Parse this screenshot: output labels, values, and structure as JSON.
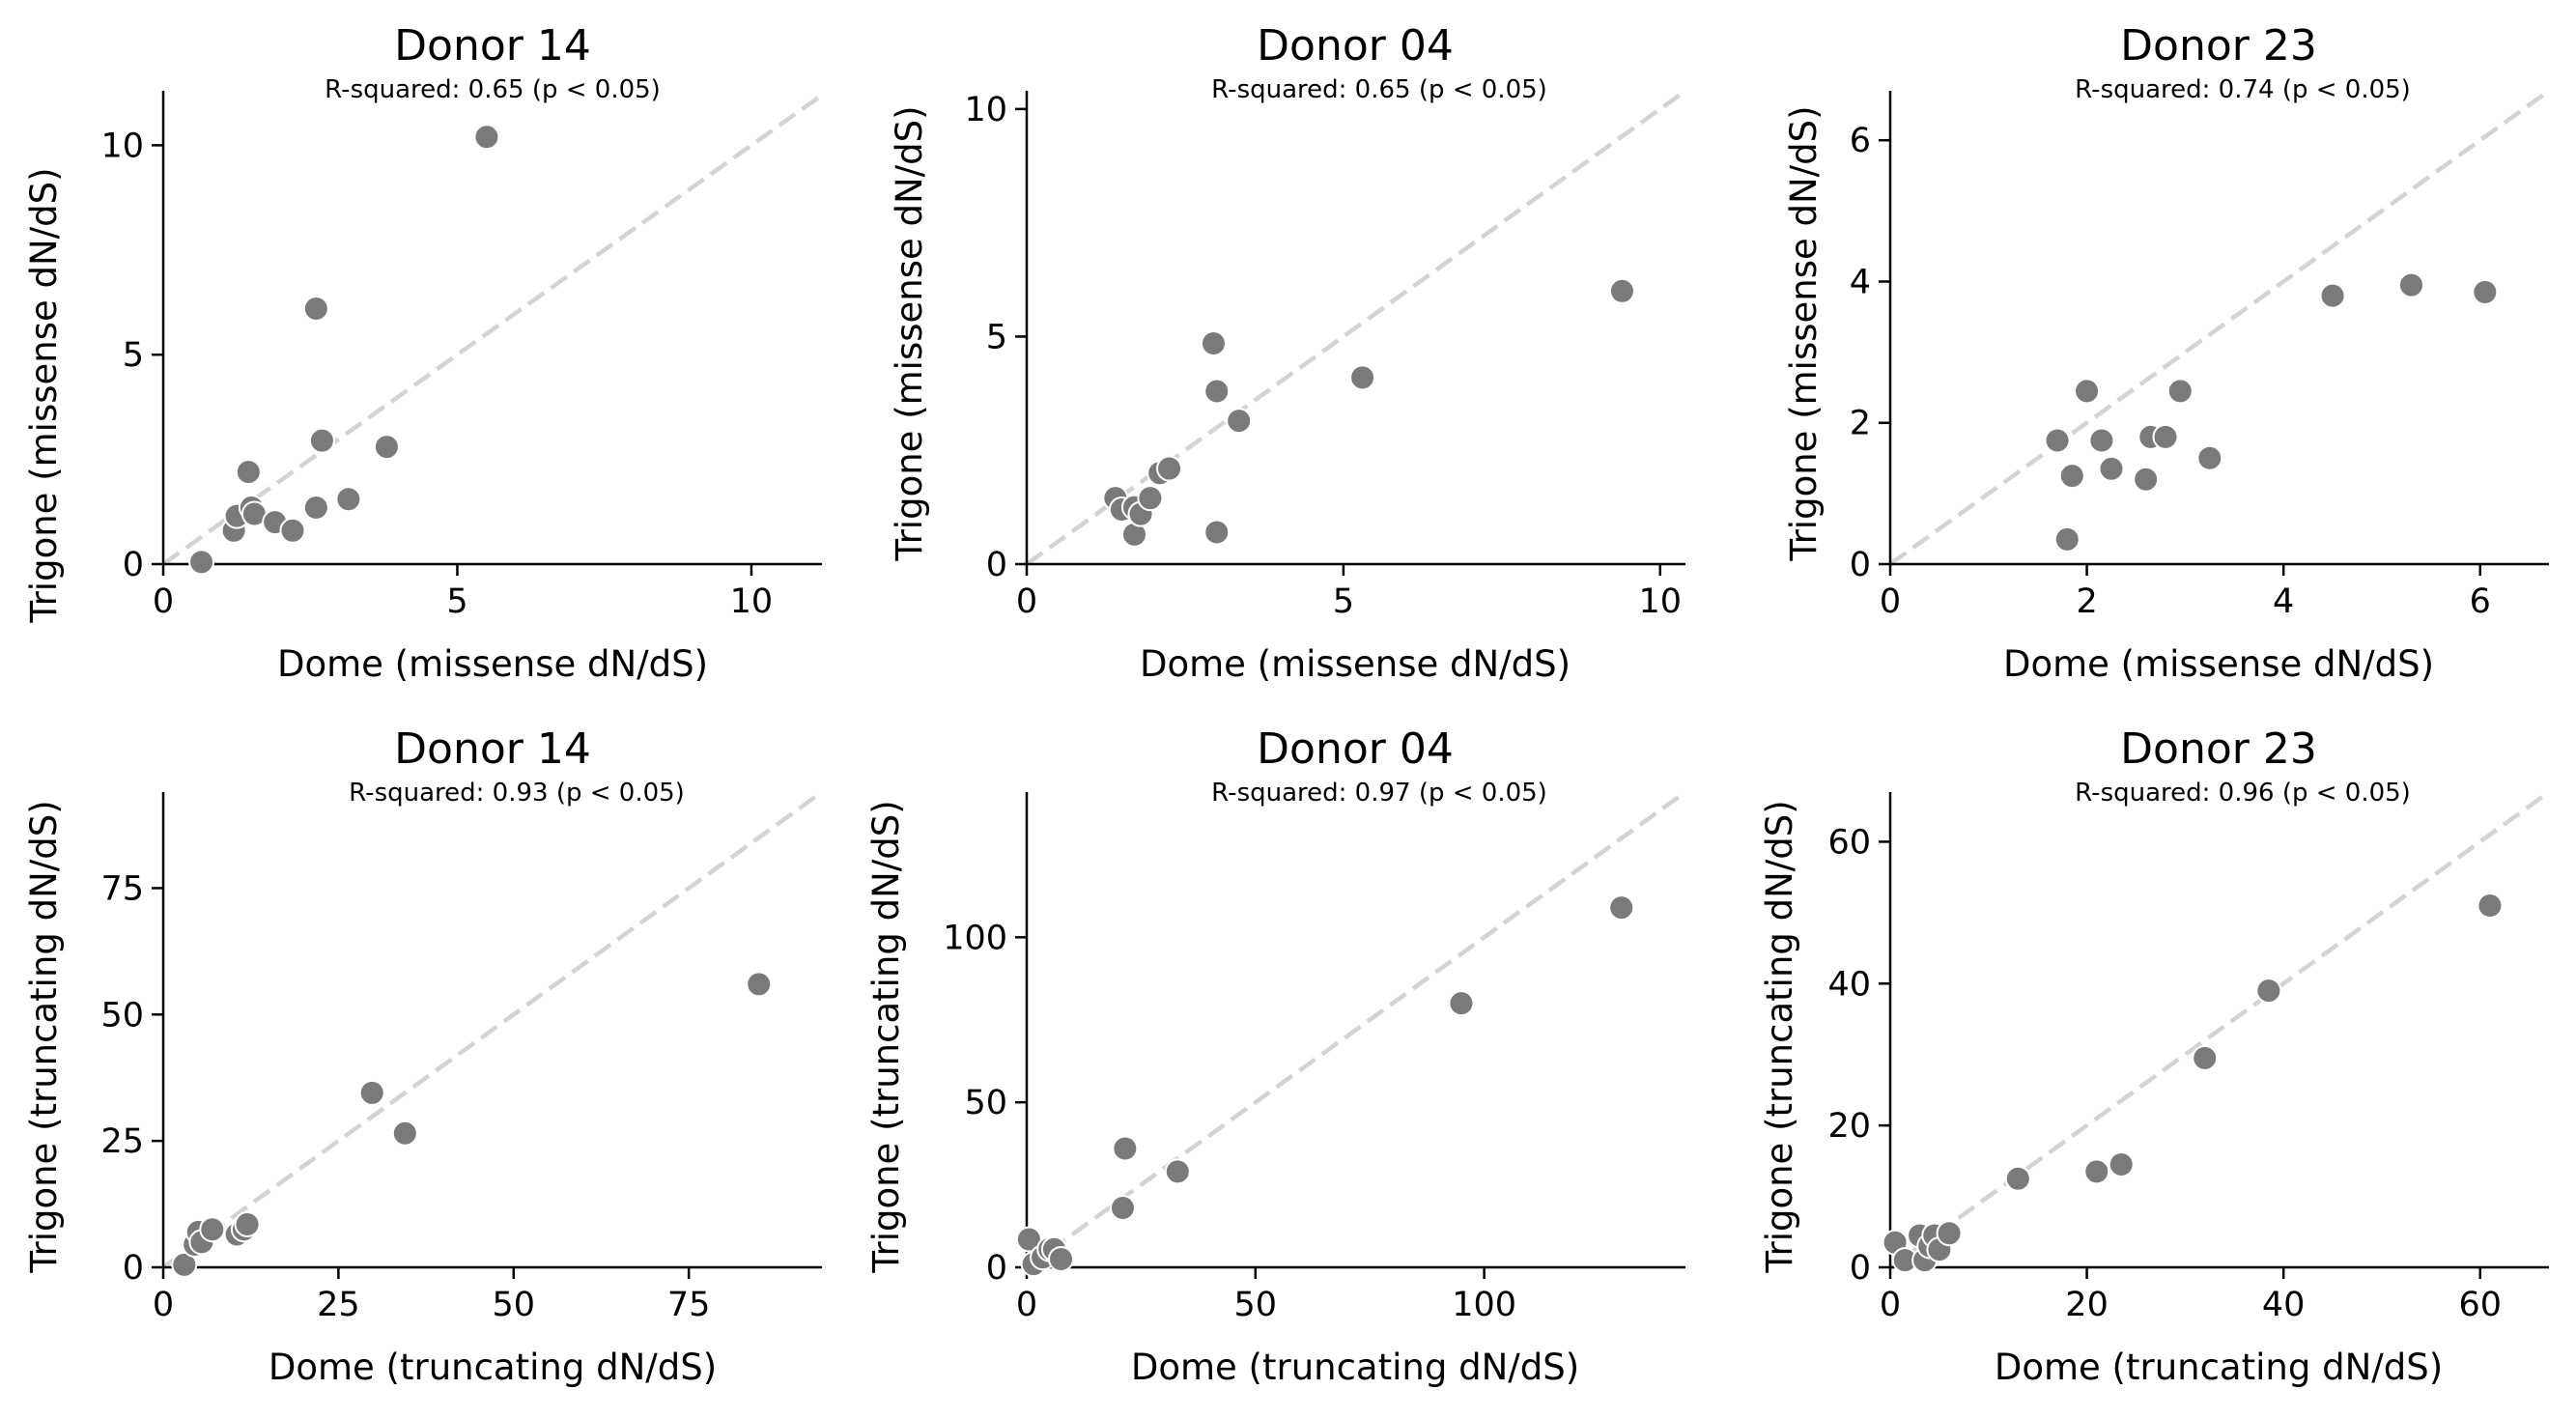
{
  "colors": {
    "point": "#7a7a7a",
    "diagonal": "#d3d3d3",
    "axis": "#000000"
  },
  "chart_data": [
    {
      "type": "scatter",
      "title": "Donor 14",
      "subtitle": "R-squared: 0.65 (p < 0.05)",
      "xlabel": "Dome (missense dN/dS)",
      "ylabel": "Trigone (missense dN/dS)",
      "xlim": [
        0,
        11.2
      ],
      "ylim": [
        0,
        11.3
      ],
      "xticks": [
        0,
        5,
        10
      ],
      "yticks": [
        0,
        5,
        10
      ],
      "diagonal": "y = x",
      "points": [
        {
          "x": 0.65,
          "y": 0.05
        },
        {
          "x": 1.2,
          "y": 0.8
        },
        {
          "x": 1.25,
          "y": 1.15
        },
        {
          "x": 1.5,
          "y": 1.35
        },
        {
          "x": 1.55,
          "y": 1.2
        },
        {
          "x": 1.45,
          "y": 2.2
        },
        {
          "x": 1.9,
          "y": 1.0
        },
        {
          "x": 2.2,
          "y": 0.8
        },
        {
          "x": 2.6,
          "y": 1.35
        },
        {
          "x": 2.6,
          "y": 6.1
        },
        {
          "x": 2.7,
          "y": 2.95
        },
        {
          "x": 3.15,
          "y": 1.55
        },
        {
          "x": 3.8,
          "y": 2.8
        },
        {
          "x": 5.5,
          "y": 10.2
        }
      ]
    },
    {
      "type": "scatter",
      "title": "Donor 04",
      "subtitle": "R-squared: 0.65 (p < 0.05)",
      "xlabel": "Dome (missense dN/dS)",
      "ylabel": "Trigone (missense dN/dS)",
      "xlim": [
        0,
        10.4
      ],
      "ylim": [
        0,
        10.4
      ],
      "xticks": [
        0,
        5,
        10
      ],
      "yticks": [
        0,
        5,
        10
      ],
      "diagonal": "y = x",
      "points": [
        {
          "x": 1.4,
          "y": 1.45
        },
        {
          "x": 1.5,
          "y": 1.2
        },
        {
          "x": 1.7,
          "y": 1.25
        },
        {
          "x": 1.7,
          "y": 0.65
        },
        {
          "x": 1.8,
          "y": 1.1
        },
        {
          "x": 1.95,
          "y": 1.45
        },
        {
          "x": 2.1,
          "y": 2.0
        },
        {
          "x": 2.25,
          "y": 2.1
        },
        {
          "x": 2.95,
          "y": 4.85
        },
        {
          "x": 3.0,
          "y": 3.8
        },
        {
          "x": 3.0,
          "y": 0.7
        },
        {
          "x": 3.35,
          "y": 3.15
        },
        {
          "x": 5.3,
          "y": 4.1
        },
        {
          "x": 9.4,
          "y": 6.0
        }
      ]
    },
    {
      "type": "scatter",
      "title": "Donor 23",
      "subtitle": "R-squared: 0.74 (p < 0.05)",
      "xlabel": "Dome (missense dN/dS)",
      "ylabel": "Trigone (missense dN/dS)",
      "xlim": [
        0,
        6.7
      ],
      "ylim": [
        0,
        6.7
      ],
      "xticks": [
        0,
        2,
        4,
        6
      ],
      "yticks": [
        0,
        2,
        4,
        6
      ],
      "diagonal": "y = x",
      "points": [
        {
          "x": 1.7,
          "y": 1.75
        },
        {
          "x": 1.8,
          "y": 0.35
        },
        {
          "x": 1.85,
          "y": 1.25
        },
        {
          "x": 2.0,
          "y": 2.45
        },
        {
          "x": 2.15,
          "y": 1.75
        },
        {
          "x": 2.25,
          "y": 1.35
        },
        {
          "x": 2.6,
          "y": 1.2
        },
        {
          "x": 2.65,
          "y": 1.8
        },
        {
          "x": 2.8,
          "y": 1.8
        },
        {
          "x": 2.95,
          "y": 2.45
        },
        {
          "x": 3.25,
          "y": 1.5
        },
        {
          "x": 4.5,
          "y": 3.8
        },
        {
          "x": 5.3,
          "y": 3.95
        },
        {
          "x": 6.05,
          "y": 3.85
        }
      ]
    },
    {
      "type": "scatter",
      "title": "Donor 14",
      "subtitle": "R-squared: 0.93 (p < 0.05)",
      "xlabel": "Dome (truncating dN/dS)",
      "ylabel": "Trigone (truncating dN/dS)",
      "xlim": [
        0,
        94
      ],
      "ylim": [
        0,
        94
      ],
      "xticks": [
        0,
        25,
        50,
        75
      ],
      "yticks": [
        0,
        25,
        50,
        75
      ],
      "diagonal": "y = x",
      "points": [
        {
          "x": 3.0,
          "y": 0.5
        },
        {
          "x": 4.5,
          "y": 4.5
        },
        {
          "x": 5.0,
          "y": 7.0
        },
        {
          "x": 5.5,
          "y": 5.0
        },
        {
          "x": 7.0,
          "y": 7.5
        },
        {
          "x": 10.5,
          "y": 6.5
        },
        {
          "x": 11.5,
          "y": 7.5
        },
        {
          "x": 12.0,
          "y": 8.5
        },
        {
          "x": 29.8,
          "y": 34.5
        },
        {
          "x": 34.5,
          "y": 26.5
        },
        {
          "x": 85.0,
          "y": 56.0
        }
      ]
    },
    {
      "type": "scatter",
      "title": "Donor 04",
      "subtitle": "R-squared: 0.97 (p < 0.05)",
      "xlabel": "Dome (truncating dN/dS)",
      "ylabel": "Trigone (truncating dN/dS)",
      "xlim": [
        0,
        144
      ],
      "ylim": [
        0,
        144
      ],
      "xticks": [
        0,
        50,
        100
      ],
      "yticks": [
        0,
        50,
        100
      ],
      "diagonal": "y = x",
      "points": [
        {
          "x": 0.5,
          "y": 8.5
        },
        {
          "x": 1.5,
          "y": 1.0
        },
        {
          "x": 3.5,
          "y": 3.0
        },
        {
          "x": 5.0,
          "y": 5.5
        },
        {
          "x": 6.0,
          "y": 5.5
        },
        {
          "x": 7.5,
          "y": 2.5
        },
        {
          "x": 21.0,
          "y": 18.0
        },
        {
          "x": 21.5,
          "y": 36.0
        },
        {
          "x": 33.0,
          "y": 29.0
        },
        {
          "x": 95.0,
          "y": 80.0
        },
        {
          "x": 130.0,
          "y": 109.0
        }
      ]
    },
    {
      "type": "scatter",
      "title": "Donor 23",
      "subtitle": "R-squared: 0.96 (p < 0.05)",
      "xlabel": "Dome (truncating dN/dS)",
      "ylabel": "Trigone (truncating dN/dS)",
      "xlim": [
        0,
        67
      ],
      "ylim": [
        0,
        67
      ],
      "xticks": [
        0,
        20,
        40,
        60
      ],
      "yticks": [
        0,
        20,
        40,
        60
      ],
      "diagonal": "y = x",
      "points": [
        {
          "x": 0.5,
          "y": 3.5
        },
        {
          "x": 1.5,
          "y": 1.0
        },
        {
          "x": 3.0,
          "y": 4.5
        },
        {
          "x": 3.5,
          "y": 1.0
        },
        {
          "x": 4.0,
          "y": 3.0
        },
        {
          "x": 4.5,
          "y": 4.5
        },
        {
          "x": 5.0,
          "y": 2.5
        },
        {
          "x": 6.0,
          "y": 4.8
        },
        {
          "x": 13.0,
          "y": 12.5
        },
        {
          "x": 21.0,
          "y": 13.5
        },
        {
          "x": 23.5,
          "y": 14.5
        },
        {
          "x": 32.0,
          "y": 29.5
        },
        {
          "x": 38.5,
          "y": 39.0
        },
        {
          "x": 61.0,
          "y": 51.0
        }
      ]
    }
  ]
}
